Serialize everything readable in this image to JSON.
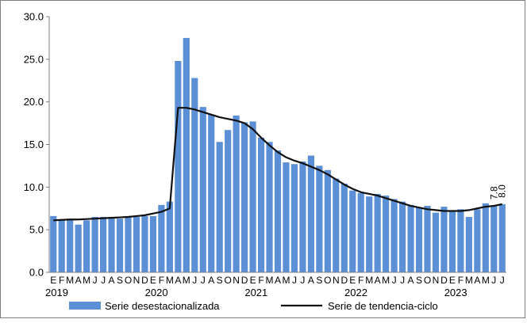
{
  "chart_data": {
    "type": "bar",
    "title": "",
    "xlabel": "",
    "ylabel": "",
    "ylim": [
      0,
      30
    ],
    "yticks": [
      "0.0",
      "5.0",
      "10.0",
      "15.0",
      "20.0",
      "25.0",
      "30.0"
    ],
    "grid": false,
    "legend_position": "bottom",
    "month_initials": [
      "E",
      "F",
      "M",
      "A",
      "M",
      "J",
      "J",
      "A",
      "S",
      "O",
      "N",
      "D",
      "E",
      "F",
      "M",
      "A",
      "M",
      "J",
      "J",
      "A",
      "S",
      "O",
      "N",
      "D",
      "E",
      "F",
      "M",
      "A",
      "M",
      "J",
      "J",
      "A",
      "S",
      "O",
      "N",
      "D",
      "E",
      "F",
      "M",
      "A",
      "M",
      "J",
      "J",
      "A",
      "S",
      "O",
      "N",
      "D",
      "E",
      "F",
      "M",
      "A",
      "M",
      "J",
      "J"
    ],
    "years": [
      {
        "label": "2019",
        "start_index": 0
      },
      {
        "label": "2020",
        "start_index": 12
      },
      {
        "label": "2021",
        "start_index": 24
      },
      {
        "label": "2022",
        "start_index": 36
      },
      {
        "label": "2023",
        "start_index": 48
      }
    ],
    "series": [
      {
        "name": "Serie desestacionalizada",
        "kind": "bar",
        "color": "#5b8fd6",
        "values": [
          6.6,
          6.1,
          6.3,
          5.6,
          6.1,
          6.5,
          6.5,
          6.5,
          6.3,
          6.6,
          6.5,
          6.6,
          6.6,
          7.9,
          8.3,
          24.8,
          27.5,
          22.8,
          19.4,
          18.5,
          15.3,
          16.7,
          18.4,
          17.6,
          17.7,
          15.8,
          15.3,
          14.3,
          12.9,
          12.7,
          13.0,
          13.7,
          12.5,
          12.0,
          11.0,
          10.4,
          9.6,
          9.3,
          8.9,
          9.2,
          9.0,
          8.6,
          8.3,
          7.9,
          7.6,
          7.8,
          7.0,
          7.7,
          7.2,
          7.4,
          6.5,
          7.4,
          8.1,
          7.8,
          8.0
        ]
      },
      {
        "name": "Serie de tendencia-ciclo",
        "kind": "line",
        "color": "#111111",
        "values": [
          6.1,
          6.15,
          6.2,
          6.2,
          6.25,
          6.3,
          6.35,
          6.4,
          6.45,
          6.5,
          6.6,
          6.7,
          6.9,
          7.1,
          7.5,
          19.3,
          19.3,
          19.1,
          18.8,
          18.5,
          18.2,
          18.0,
          17.8,
          17.5,
          16.8,
          15.8,
          14.9,
          14.1,
          13.5,
          13.1,
          12.8,
          12.4,
          12.0,
          11.5,
          10.9,
          10.3,
          9.8,
          9.4,
          9.2,
          9.0,
          8.7,
          8.4,
          8.1,
          7.8,
          7.6,
          7.4,
          7.3,
          7.2,
          7.2,
          7.2,
          7.3,
          7.5,
          7.7,
          7.8,
          8.0
        ]
      }
    ],
    "annotations": [
      {
        "text": "7.8",
        "index": 53
      },
      {
        "text": "8.0",
        "index": 54
      }
    ]
  }
}
